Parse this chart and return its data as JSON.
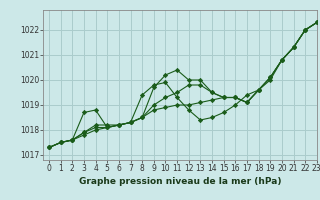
{
  "title": "Graphe pression niveau de la mer (hPa)",
  "bg_color": "#cce8e8",
  "grid_color": "#aacccc",
  "line_color": "#1a5c1a",
  "xlim": [
    -0.5,
    23
  ],
  "ylim": [
    1016.8,
    1022.8
  ],
  "yticks": [
    1017,
    1018,
    1019,
    1020,
    1021,
    1022
  ],
  "xticks": [
    0,
    1,
    2,
    3,
    4,
    5,
    6,
    7,
    8,
    9,
    10,
    11,
    12,
    13,
    14,
    15,
    16,
    17,
    18,
    19,
    20,
    21,
    22,
    23
  ],
  "series": [
    [
      1017.3,
      1017.5,
      1017.6,
      1017.8,
      1018.0,
      1018.1,
      1018.2,
      1018.3,
      1018.5,
      1019.7,
      1020.2,
      1020.4,
      1020.0,
      1020.0,
      1019.5,
      1019.3,
      1019.3,
      1019.1,
      1019.6,
      1020.1,
      1020.8,
      1021.3,
      1022.0,
      1022.3
    ],
    [
      1017.3,
      1017.5,
      1017.6,
      1017.9,
      1018.2,
      1018.2,
      1018.2,
      1018.3,
      1018.5,
      1018.8,
      1018.9,
      1019.0,
      1019.0,
      1019.1,
      1019.2,
      1019.3,
      1019.3,
      1019.1,
      1019.6,
      1020.1,
      1020.8,
      1021.3,
      1022.0,
      1022.3
    ],
    [
      1017.3,
      1017.5,
      1017.6,
      1017.9,
      1018.1,
      1018.1,
      1018.2,
      1018.3,
      1018.5,
      1019.0,
      1019.3,
      1019.5,
      1019.8,
      1019.8,
      1019.5,
      1019.3,
      1019.3,
      1019.1,
      1019.6,
      1020.1,
      1020.8,
      1021.3,
      1022.0,
      1022.3
    ],
    [
      1017.3,
      1017.5,
      1017.6,
      1018.7,
      1018.8,
      1018.1,
      1018.2,
      1018.3,
      1019.4,
      1019.8,
      1019.9,
      1019.3,
      1018.8,
      1018.4,
      1018.5,
      1018.7,
      1019.0,
      1019.4,
      1019.6,
      1020.0,
      1020.8,
      1021.3,
      1022.0,
      1022.3
    ]
  ],
  "ylabel_fontsize": 5.5,
  "xlabel_fontsize": 6.5,
  "tick_fontsize": 5.5
}
